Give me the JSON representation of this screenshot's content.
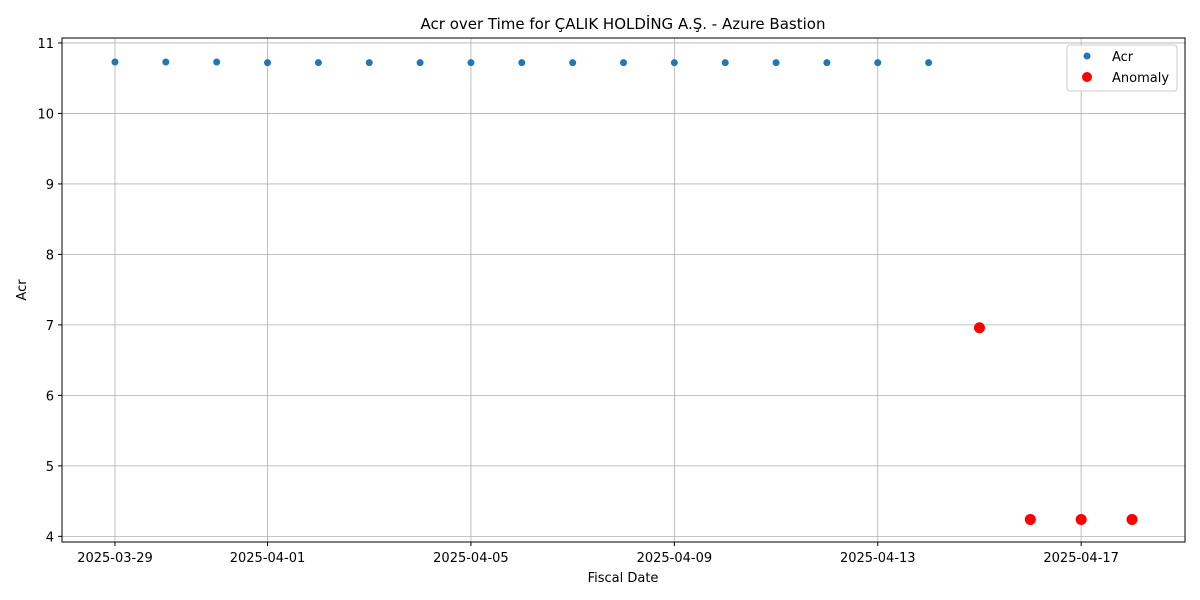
{
  "chart_data": {
    "type": "scatter",
    "title": "Acr over Time for ÇALIK HOLDİNG A.Ş. - Azure Bastion",
    "xlabel": "Fiscal Date",
    "ylabel": "Acr",
    "xlim": [
      "2025-03-27T23:00",
      "2025-04-19T01:00"
    ],
    "ylim": [
      3.92,
      11.07
    ],
    "x_ticks": [
      "2025-03-29",
      "2025-04-01",
      "2025-04-05",
      "2025-04-09",
      "2025-04-13",
      "2025-04-17"
    ],
    "y_ticks": [
      4,
      5,
      6,
      7,
      8,
      9,
      10,
      11
    ],
    "grid": true,
    "legend_position": "top-right",
    "series": [
      {
        "name": "Acr",
        "color": "#1f77b4",
        "x": [
          "2025-03-29",
          "2025-03-30",
          "2025-03-31",
          "2025-04-01",
          "2025-04-02",
          "2025-04-03",
          "2025-04-04",
          "2025-04-05",
          "2025-04-06",
          "2025-04-07",
          "2025-04-08",
          "2025-04-09",
          "2025-04-10",
          "2025-04-11",
          "2025-04-12",
          "2025-04-13",
          "2025-04-14"
        ],
        "y": [
          10.73,
          10.73,
          10.73,
          10.72,
          10.72,
          10.72,
          10.72,
          10.72,
          10.72,
          10.72,
          10.72,
          10.72,
          10.72,
          10.72,
          10.72,
          10.72,
          10.72
        ]
      },
      {
        "name": "Anomaly",
        "color": "#ff0000",
        "x": [
          "2025-04-15",
          "2025-04-16",
          "2025-04-17",
          "2025-04-18"
        ],
        "y": [
          6.96,
          4.24,
          4.24,
          4.24
        ]
      }
    ]
  }
}
